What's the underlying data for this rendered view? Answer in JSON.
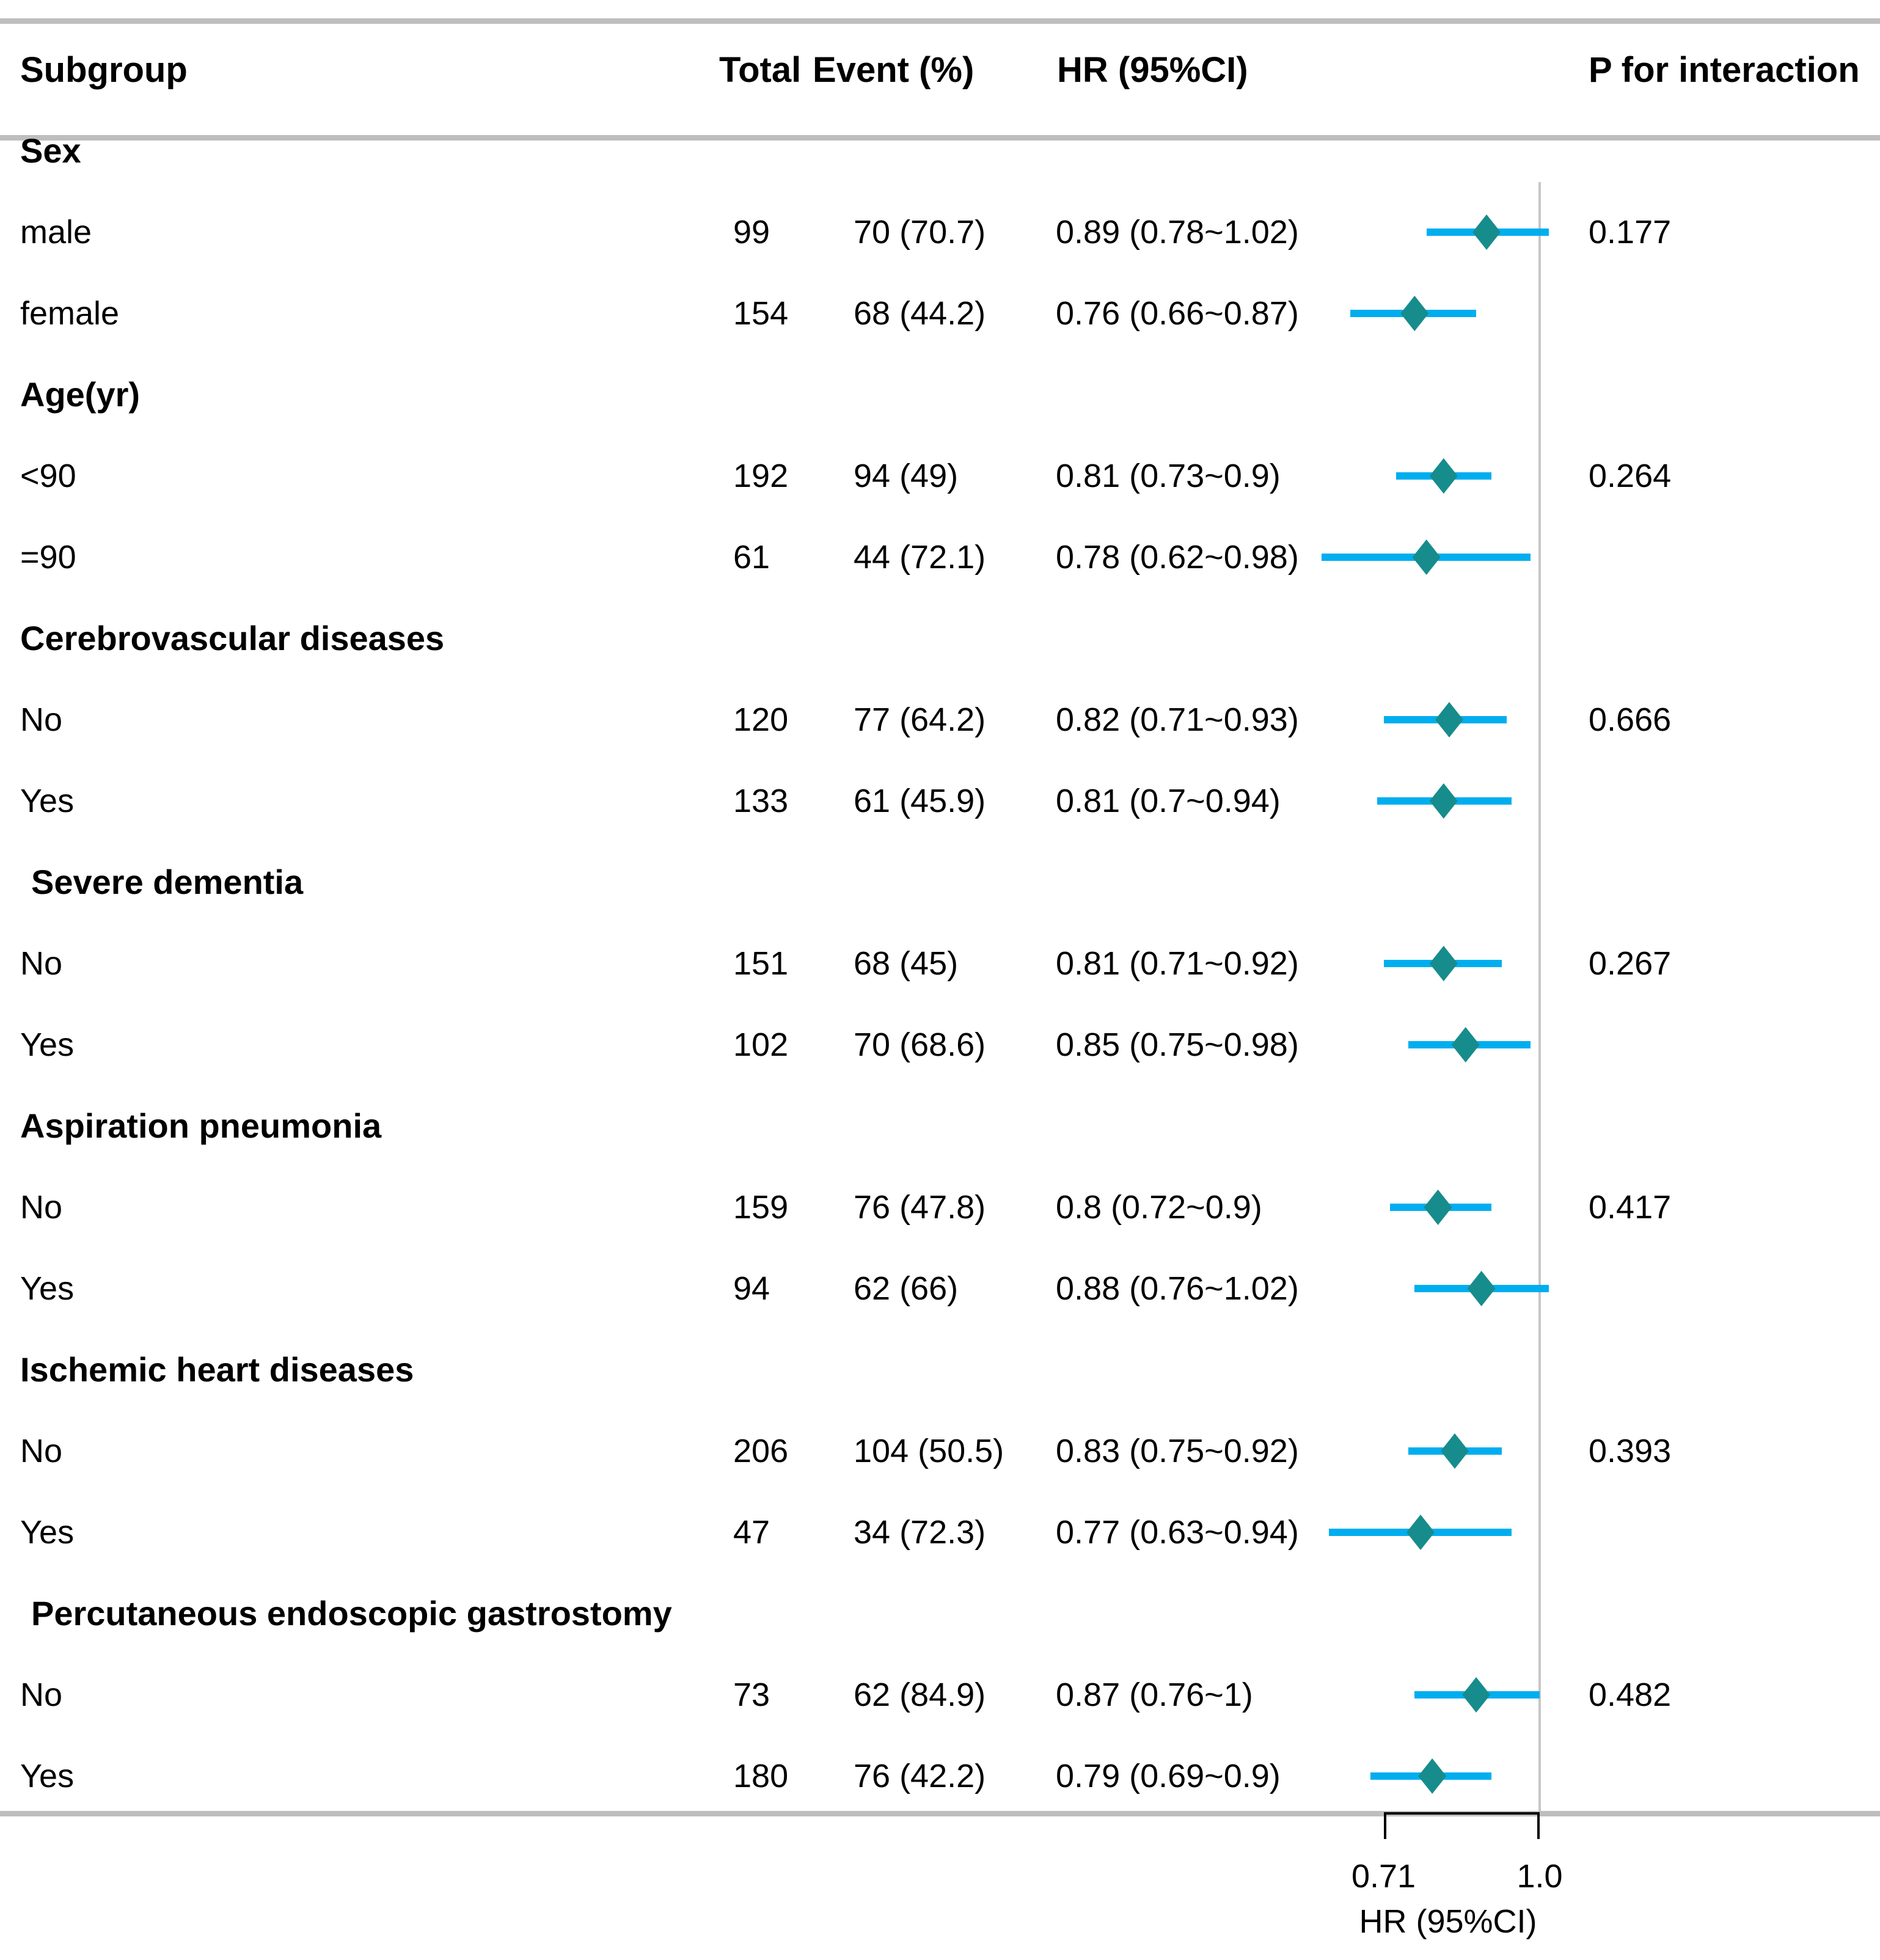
{
  "table": {
    "headers": {
      "subgroup": "Subgroup",
      "total": "Total",
      "event": "Event (%)",
      "hr": "HR (95%CI)",
      "p": "P for interaction"
    }
  },
  "chart_data": {
    "type": "forest",
    "xlabel": "HR (95%CI)",
    "axis": {
      "scale": "log",
      "tick_values": [
        0.71,
        1.0
      ],
      "tick_labels": [
        "0.71",
        "1.0"
      ],
      "reference_line": 1.0,
      "xlim": [
        0.6,
        1.07
      ],
      "grid": false
    },
    "colors": {
      "ci_line": "#00AEEF",
      "diamond": "#178C8C",
      "rule": "#BEBEBE",
      "reference_line": "#C6C6C6",
      "text": "#000000"
    },
    "rows": [
      {
        "type": "section",
        "label": "Sex",
        "indent": false
      },
      {
        "type": "data",
        "label": "male",
        "total": "99",
        "event": "70 (70.7)",
        "hr_text": "0.89 (0.78~1.02)",
        "hr": 0.89,
        "lo": 0.78,
        "hi": 1.02,
        "p": "0.177"
      },
      {
        "type": "data",
        "label": "female",
        "total": "154",
        "event": "68 (44.2)",
        "hr_text": "0.76 (0.66~0.87)",
        "hr": 0.76,
        "lo": 0.66,
        "hi": 0.87,
        "p": ""
      },
      {
        "type": "section",
        "label": "Age(yr)",
        "indent": false
      },
      {
        "type": "data",
        "label": "<90",
        "total": "192",
        "event": "94 (49)",
        "hr_text": "0.81 (0.73~0.9)",
        "hr": 0.81,
        "lo": 0.73,
        "hi": 0.9,
        "p": "0.264"
      },
      {
        "type": "data",
        "label": "=90",
        "total": "61",
        "event": "44 (72.1)",
        "hr_text": "0.78 (0.62~0.98)",
        "hr": 0.78,
        "lo": 0.62,
        "hi": 0.98,
        "p": ""
      },
      {
        "type": "section",
        "label": "Cerebrovascular diseases",
        "indent": false
      },
      {
        "type": "data",
        "label": "No",
        "total": "120",
        "event": "77 (64.2)",
        "hr_text": "0.82 (0.71~0.93)",
        "hr": 0.82,
        "lo": 0.71,
        "hi": 0.93,
        "p": "0.666"
      },
      {
        "type": "data",
        "label": "Yes",
        "total": "133",
        "event": "61 (45.9)",
        "hr_text": "0.81 (0.7~0.94)",
        "hr": 0.81,
        "lo": 0.7,
        "hi": 0.94,
        "p": ""
      },
      {
        "type": "section",
        "label": "Severe dementia",
        "indent": true
      },
      {
        "type": "data",
        "label": "No",
        "total": "151",
        "event": "68 (45)",
        "hr_text": "0.81 (0.71~0.92)",
        "hr": 0.81,
        "lo": 0.71,
        "hi": 0.92,
        "p": "0.267"
      },
      {
        "type": "data",
        "label": "Yes",
        "total": "102",
        "event": "70 (68.6)",
        "hr_text": "0.85 (0.75~0.98)",
        "hr": 0.85,
        "lo": 0.75,
        "hi": 0.98,
        "p": ""
      },
      {
        "type": "section",
        "label": "Aspiration pneumonia",
        "indent": false
      },
      {
        "type": "data",
        "label": "No",
        "total": "159",
        "event": "76 (47.8)",
        "hr_text": "0.8 (0.72~0.9)",
        "hr": 0.8,
        "lo": 0.72,
        "hi": 0.9,
        "p": "0.417"
      },
      {
        "type": "data",
        "label": "Yes",
        "total": "94",
        "event": "62 (66)",
        "hr_text": "0.88 (0.76~1.02)",
        "hr": 0.88,
        "lo": 0.76,
        "hi": 1.02,
        "p": ""
      },
      {
        "type": "section",
        "label": "Ischemic heart diseases",
        "indent": false
      },
      {
        "type": "data",
        "label": "No",
        "total": "206",
        "event": "104 (50.5)",
        "hr_text": "0.83 (0.75~0.92)",
        "hr": 0.83,
        "lo": 0.75,
        "hi": 0.92,
        "p": "0.393"
      },
      {
        "type": "data",
        "label": "Yes",
        "total": "47",
        "event": "34 (72.3)",
        "hr_text": "0.77 (0.63~0.94)",
        "hr": 0.77,
        "lo": 0.63,
        "hi": 0.94,
        "p": ""
      },
      {
        "type": "section",
        "label": "Percutaneous endoscopic gastrostomy",
        "indent": true
      },
      {
        "type": "data",
        "label": "No",
        "total": "73",
        "event": "62 (84.9)",
        "hr_text": "0.87 (0.76~1)",
        "hr": 0.87,
        "lo": 0.76,
        "hi": 1.0,
        "p": "0.482"
      },
      {
        "type": "data",
        "label": "Yes",
        "total": "180",
        "event": "76 (42.2)",
        "hr_text": "0.79 (0.69~0.9)",
        "hr": 0.79,
        "lo": 0.69,
        "hi": 0.9,
        "p": ""
      }
    ]
  }
}
